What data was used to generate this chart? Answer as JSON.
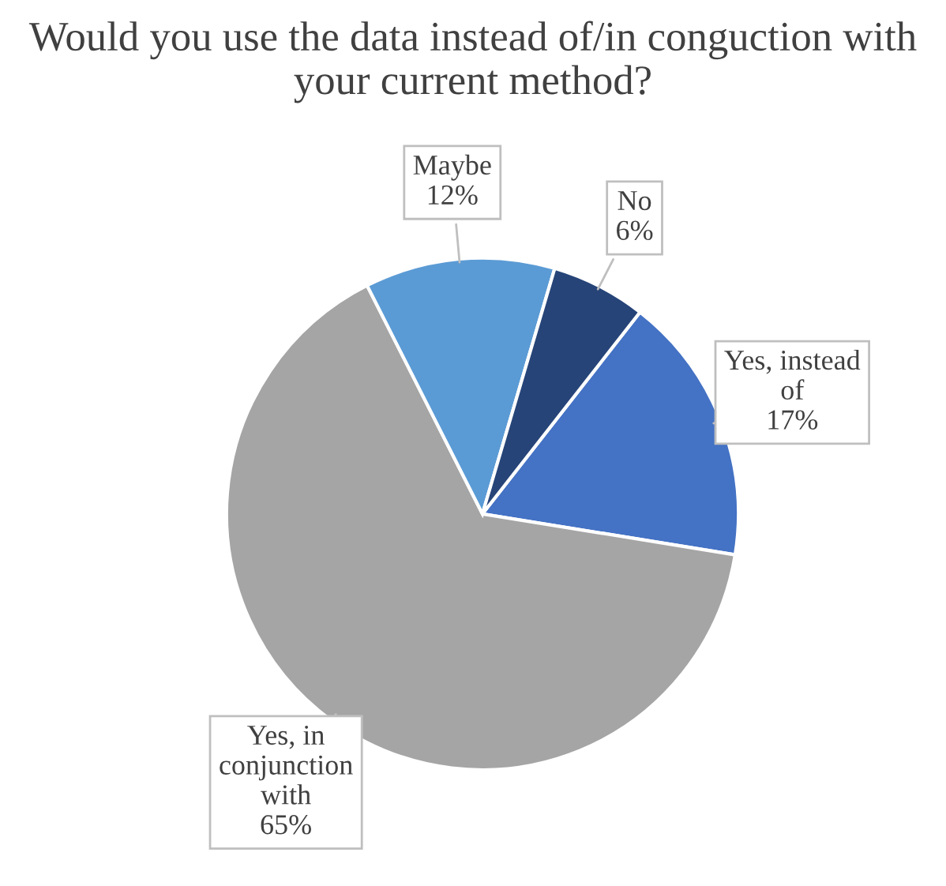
{
  "chart_data": {
    "type": "pie",
    "title": "Would you use the data instead of/in conguction with your current method?",
    "categories": [
      "Yes, instead of",
      "Yes, in conjunction with",
      "Maybe",
      "No"
    ],
    "values": [
      17,
      65,
      12,
      6
    ],
    "value_labels": [
      "17%",
      "65%",
      "12%",
      "6%"
    ],
    "colors": [
      "#4472c4",
      "#a5a5a5",
      "#5b9bd5",
      "#264478"
    ],
    "legend": false
  }
}
